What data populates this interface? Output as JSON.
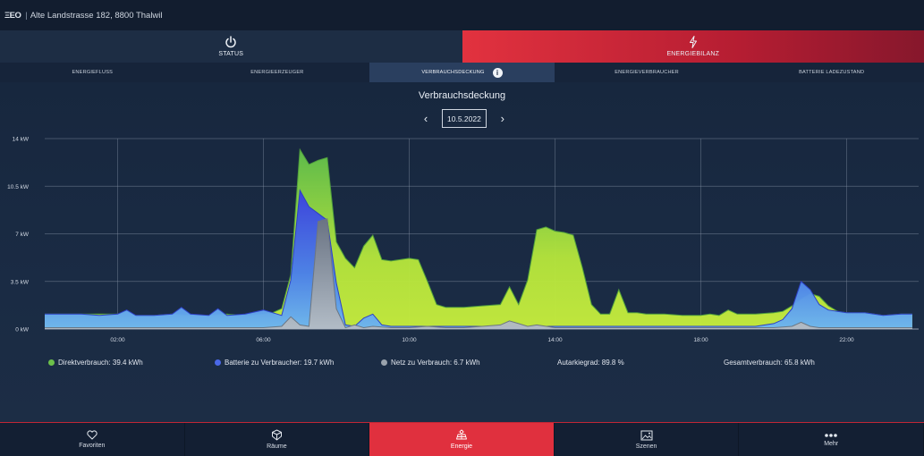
{
  "topbar": {
    "logo": "ΞEO",
    "address": "Alte Landstrasse 182, 8800 Thalwil"
  },
  "modes": [
    {
      "label": "STATUS",
      "icon": "power-icon"
    },
    {
      "label": "ENERGIEBILANZ",
      "icon": "bolt-icon"
    }
  ],
  "subtabs": [
    "ENERGIEFLUSS",
    "ENERGIEERZEUGER",
    "VERBRAUCHSDECKUNG",
    "ENERGIEVERBRAUCHER",
    "BATTERIE LADEZUSTAND"
  ],
  "info_glyph": "i",
  "page_title": "Verbrauchsdeckung",
  "date": {
    "value": "10.5.2022",
    "prev_glyph": "‹",
    "next_glyph": "›"
  },
  "chart_data": {
    "type": "area",
    "title": "Verbrauchsdeckung",
    "xlabel": "",
    "ylabel": "",
    "x_ticks": [
      "02:00",
      "06:00",
      "10:00",
      "14:00",
      "18:00",
      "22:00"
    ],
    "y_ticks": [
      "0 kW",
      "3.5 kW",
      "7 kW",
      "10.5 kW",
      "14 kW"
    ],
    "x_range_hours": [
      0,
      24
    ],
    "ylim": [
      0,
      14
    ],
    "colors": {
      "direkt": "#a9e23a",
      "batterie": "#3f63e6",
      "netz": "#9aa3ad"
    },
    "series": [
      {
        "name": "Direktverbrauch",
        "x": [
          0,
          0.5,
          1,
          1.5,
          2,
          2.25,
          2.5,
          3,
          3.5,
          4,
          4.5,
          5,
          5.5,
          6,
          6.25,
          6.5,
          6.75,
          7,
          7.25,
          7.5,
          7.75,
          8,
          8.25,
          8.5,
          8.75,
          9,
          9.25,
          9.5,
          9.75,
          10,
          10.25,
          10.5,
          10.75,
          11,
          11.5,
          12,
          12.5,
          12.75,
          13,
          13.25,
          13.5,
          13.75,
          14,
          14.25,
          14.5,
          14.75,
          15,
          15.25,
          15.5,
          15.75,
          16,
          16.25,
          16.5,
          17,
          17.5,
          18,
          18.25,
          18.5,
          18.75,
          19,
          19.5,
          20,
          20.25,
          20.5,
          20.75,
          21,
          21.25,
          21.5,
          21.75,
          22,
          22.5,
          23,
          23.5,
          23.8
        ],
        "values": [
          1.1,
          1.1,
          1.1,
          1.1,
          1.1,
          1.3,
          1.0,
          1.0,
          1.1,
          1.0,
          1.0,
          1.1,
          1.0,
          1.1,
          1.2,
          1.5,
          4.0,
          13.2,
          12.1,
          12.4,
          12.6,
          6.4,
          5.2,
          4.5,
          6.1,
          6.9,
          5.1,
          5.0,
          5.1,
          5.2,
          5.1,
          3.5,
          1.8,
          1.6,
          1.6,
          1.7,
          1.8,
          3.1,
          1.8,
          3.6,
          7.3,
          7.5,
          7.2,
          7.1,
          6.9,
          4.5,
          1.8,
          1.1,
          1.1,
          2.9,
          1.2,
          1.2,
          1.1,
          1.1,
          1.0,
          1.0,
          1.1,
          1.0,
          1.4,
          1.1,
          1.1,
          1.2,
          1.3,
          1.7,
          2.2,
          2.6,
          2.4,
          1.7,
          1.3,
          1.2,
          1.2,
          1.0,
          1.1,
          1.1
        ]
      },
      {
        "name": "Batterie zu Verbraucher",
        "x": [
          0,
          0.5,
          1,
          1.5,
          2,
          2.25,
          2.5,
          3,
          3.5,
          3.75,
          4,
          4.5,
          4.75,
          5,
          5.5,
          6,
          6.25,
          6.5,
          6.75,
          7,
          7.25,
          7.5,
          7.75,
          8,
          8.25,
          8.5,
          8.75,
          9,
          9.25,
          9.5,
          10,
          11,
          12,
          13,
          14,
          15,
          16,
          17,
          18,
          19,
          19.5,
          20,
          20.25,
          20.5,
          20.75,
          21,
          21.25,
          21.5,
          21.75,
          22,
          22.5,
          23,
          23.5,
          23.8
        ],
        "values": [
          1.1,
          1.1,
          1.1,
          1.0,
          1.1,
          1.4,
          1.0,
          1.0,
          1.1,
          1.6,
          1.1,
          1.0,
          1.5,
          1.0,
          1.1,
          1.4,
          1.2,
          1.0,
          3.6,
          10.2,
          9.0,
          8.5,
          8.0,
          3.4,
          0.3,
          0.2,
          0.8,
          1.1,
          0.3,
          0.2,
          0.2,
          0.2,
          0.2,
          0.2,
          0.2,
          0.2,
          0.2,
          0.2,
          0.2,
          0.2,
          0.2,
          0.4,
          0.7,
          1.5,
          3.5,
          2.9,
          1.8,
          1.4,
          1.3,
          1.2,
          1.2,
          1.0,
          1.1,
          1.1
        ]
      },
      {
        "name": "Netz zu Verbrauch",
        "x": [
          0,
          1,
          2,
          3,
          4,
          5,
          6,
          6.5,
          6.75,
          7,
          7.25,
          7.5,
          7.75,
          8,
          8.25,
          8.5,
          8.75,
          9,
          9.5,
          10,
          10.5,
          11,
          11.5,
          12,
          12.5,
          12.75,
          13,
          13.25,
          13.5,
          14,
          15,
          16,
          17,
          18,
          19,
          20,
          20.5,
          20.75,
          21,
          21.25,
          21.5,
          22,
          23,
          23.8
        ],
        "values": [
          0.1,
          0.1,
          0.1,
          0.1,
          0.1,
          0.1,
          0.1,
          0.2,
          0.9,
          0.3,
          0.2,
          7.9,
          8.1,
          1.5,
          0.1,
          0.3,
          0.1,
          0.2,
          0.1,
          0.1,
          0.2,
          0.1,
          0.1,
          0.2,
          0.3,
          0.6,
          0.4,
          0.2,
          0.3,
          0.1,
          0.1,
          0.1,
          0.1,
          0.1,
          0.1,
          0.1,
          0.2,
          0.5,
          0.2,
          0.1,
          0.1,
          0.1,
          0.1,
          0.1
        ]
      }
    ]
  },
  "legend": {
    "direkt": "Direktverbrauch: 39.4 kWh",
    "batterie": "Batterie zu Verbraucher: 19.7 kWh",
    "netz": "Netz zu Verbrauch: 6.7 kWh",
    "autarkie": "Autarkiegrad: 89.8 %",
    "gesamt": "Gesamtverbrauch: 65.8 kWh"
  },
  "bottomnav": [
    {
      "label": "Favoriten",
      "icon": "heart-icon"
    },
    {
      "label": "Räume",
      "icon": "cube-icon"
    },
    {
      "label": "Energie",
      "icon": "solar-panel-icon"
    },
    {
      "label": "Szenen",
      "icon": "image-icon"
    },
    {
      "label": "Mehr",
      "icon": "more-dots-icon"
    }
  ]
}
